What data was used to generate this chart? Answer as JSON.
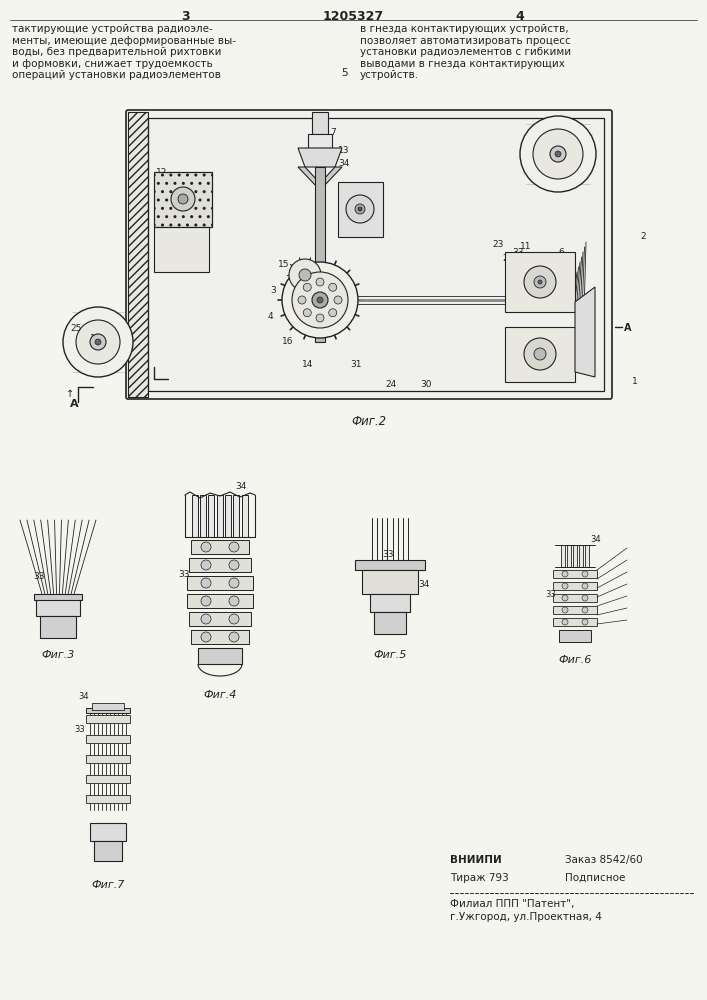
{
  "bg_color": "#f5f5f0",
  "page_width": 7.07,
  "page_height": 10.0,
  "header_left": "тактирующие устройства радиоэле-\nменты, имеющие деформированные вы-\nводы, без предварительной рихтовки\nи формовки, снижает трудоемкость\nопераций установки радиоэлементов",
  "header_right": "в гнезда контактирующих устройств,\nпозволяет автоматизировать процесс\nустановки радиоэлементов с гибкими\nвыводами в гнезда контактирующих\nустройств.",
  "page_num_left": "3",
  "patent_num": "1205327",
  "page_num_right": "4",
  "num5": "5",
  "fig2_cap": "Фиг.2",
  "fig3_cap": "Фиг.3",
  "fig4_cap": "Фиг.4",
  "fig5_cap": "Фиг.5",
  "fig6_cap": "Фиг.6",
  "fig7_cap": "Фиг.7",
  "vnipi1": "ВНИИПИ",
  "zakaz": "Заказ 8542/60",
  "tirazh": "Тираж 793",
  "podpisnoe": "Подписное",
  "filial1": "Филиал ППП \"Патент\",",
  "filial2": "г.Ужгород, ул.Проектная, 4",
  "lc": "#222222",
  "lc_light": "#555555",
  "hatch_color": "#333333"
}
